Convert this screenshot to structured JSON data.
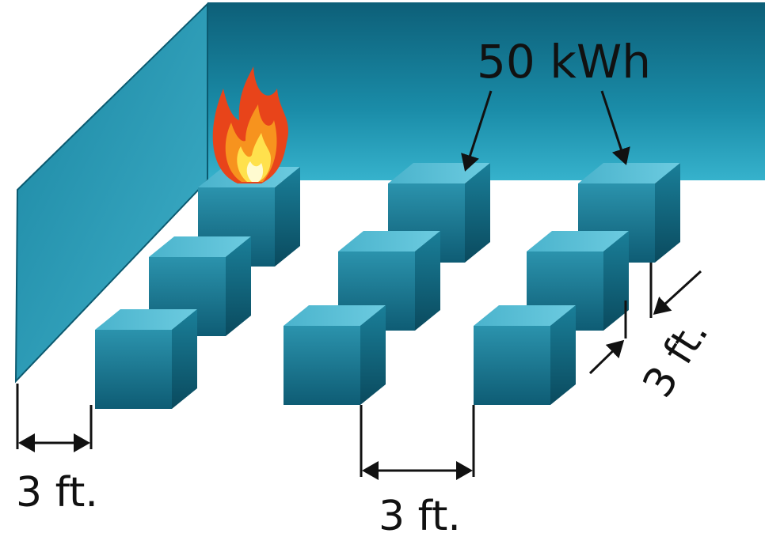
{
  "labels": {
    "capacity": "50 kWh",
    "wall_spacing": "3 ft.",
    "row_spacing": "3 ft.",
    "unit_spacing": "3 ft."
  }
}
